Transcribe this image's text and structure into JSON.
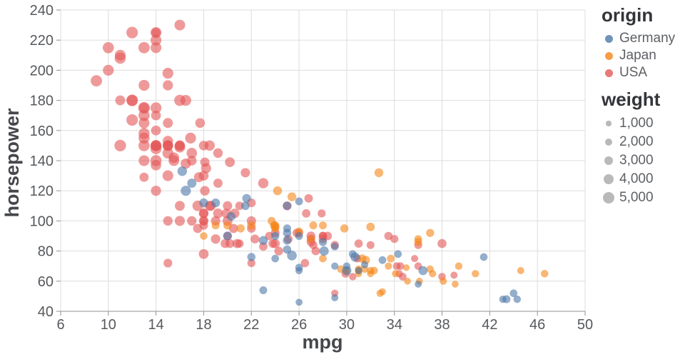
{
  "chart_data": {
    "type": "scatter",
    "title": "",
    "xlabel": "mpg",
    "ylabel": "horsepower",
    "xlim": [
      6,
      50
    ],
    "ylim": [
      40,
      240
    ],
    "xticks": [
      6,
      10,
      14,
      18,
      22,
      26,
      30,
      34,
      38,
      42,
      46,
      50
    ],
    "yticks": [
      40,
      60,
      80,
      100,
      120,
      140,
      160,
      180,
      200,
      220,
      240
    ],
    "grid": true,
    "point_opacity": 0.6,
    "colors": {
      "Germany": "#4c78a8",
      "Japan": "#f58518",
      "USA": "#e45756"
    },
    "legend": {
      "origin": {
        "title": "origin",
        "entries": [
          {
            "label": "Germany",
            "color": "#4c78a8"
          },
          {
            "label": "Japan",
            "color": "#f58518"
          },
          {
            "label": "USA",
            "color": "#e45756"
          }
        ]
      },
      "weight": {
        "title": "weight",
        "swatch_color": "#9b9b9b",
        "entries": [
          {
            "label": "1,000",
            "value": 1000
          },
          {
            "label": "2,000",
            "value": 2000
          },
          {
            "label": "3,000",
            "value": 3000
          },
          {
            "label": "4,000",
            "value": 4000
          },
          {
            "label": "5,000",
            "value": 5000
          }
        ]
      }
    },
    "point_format": [
      "mpg",
      "horsepower",
      "weight",
      "origin"
    ],
    "points": [
      [
        18,
        130,
        3504,
        "USA"
      ],
      [
        15,
        165,
        3693,
        "USA"
      ],
      [
        18,
        150,
        3436,
        "USA"
      ],
      [
        16,
        150,
        3433,
        "USA"
      ],
      [
        17,
        140,
        3449,
        "USA"
      ],
      [
        15,
        198,
        4341,
        "USA"
      ],
      [
        14,
        220,
        4354,
        "USA"
      ],
      [
        14,
        215,
        4312,
        "USA"
      ],
      [
        14,
        225,
        4425,
        "USA"
      ],
      [
        15,
        190,
        3850,
        "USA"
      ],
      [
        14,
        170,
        3563,
        "USA"
      ],
      [
        14,
        160,
        3609,
        "USA"
      ],
      [
        15,
        150,
        3761,
        "USA"
      ],
      [
        14,
        225,
        3086,
        "USA"
      ],
      [
        10,
        215,
        4615,
        "USA"
      ],
      [
        10,
        200,
        4376,
        "USA"
      ],
      [
        11,
        210,
        4382,
        "USA"
      ],
      [
        9,
        193,
        4732,
        "USA"
      ],
      [
        11,
        180,
        3664,
        "USA"
      ],
      [
        12,
        167,
        4906,
        "USA"
      ],
      [
        12,
        180,
        4499,
        "USA"
      ],
      [
        13,
        170,
        4654,
        "USA"
      ],
      [
        13,
        150,
        4699,
        "USA"
      ],
      [
        13,
        158,
        4504,
        "USA"
      ],
      [
        14,
        150,
        4464,
        "USA"
      ],
      [
        14,
        148,
        4657,
        "USA"
      ],
      [
        15,
        145,
        4440,
        "USA"
      ],
      [
        14,
        137,
        4042,
        "USA"
      ],
      [
        16,
        150,
        4077,
        "USA"
      ],
      [
        16,
        180,
        4668,
        "USA"
      ],
      [
        14,
        150,
        4257,
        "USA"
      ],
      [
        17,
        145,
        4082,
        "USA"
      ],
      [
        16,
        230,
        4278,
        "USA"
      ],
      [
        12,
        225,
        4951,
        "USA"
      ],
      [
        13,
        175,
        5140,
        "USA"
      ],
      [
        13,
        175,
        3821,
        "USA"
      ],
      [
        11,
        208,
        4633,
        "USA"
      ],
      [
        13,
        215,
        4735,
        "USA"
      ],
      [
        13,
        155,
        4502,
        "USA"
      ],
      [
        13,
        190,
        4422,
        "USA"
      ],
      [
        11,
        150,
        4997,
        "USA"
      ],
      [
        13,
        165,
        4274,
        "USA"
      ],
      [
        14,
        175,
        4464,
        "USA"
      ],
      [
        12,
        180,
        4955,
        "USA"
      ],
      [
        13,
        140,
        4294,
        "USA"
      ],
      [
        14,
        140,
        4638,
        "USA"
      ],
      [
        13,
        129,
        3169,
        "USA"
      ],
      [
        15,
        153,
        4034,
        "USA"
      ],
      [
        15,
        150,
        4135,
        "USA"
      ],
      [
        15,
        130,
        4295,
        "USA"
      ],
      [
        16,
        149,
        4335,
        "USA"
      ],
      [
        16.5,
        180,
        4380,
        "USA"
      ],
      [
        15.5,
        142,
        4054,
        "USA"
      ],
      [
        16.9,
        155,
        4360,
        "USA"
      ],
      [
        15.5,
        140,
        4215,
        "USA"
      ],
      [
        17.7,
        165,
        3445,
        "USA"
      ],
      [
        16.5,
        138,
        3955,
        "USA"
      ],
      [
        17.6,
        129,
        3725,
        "USA"
      ],
      [
        18.2,
        135,
        3830,
        "USA"
      ],
      [
        18.5,
        150,
        3940,
        "USA"
      ],
      [
        19.2,
        145,
        3425,
        "USA"
      ],
      [
        18.1,
        139,
        3205,
        "USA"
      ],
      [
        17.5,
        110,
        4165,
        "USA"
      ],
      [
        16,
        110,
        3632,
        "USA"
      ],
      [
        16,
        100,
        3781,
        "USA"
      ],
      [
        15,
        150,
        3892,
        "USA"
      ],
      [
        15,
        100,
        3336,
        "USA"
      ],
      [
        14,
        150,
        4036,
        "USA"
      ],
      [
        14,
        120,
        3820,
        "USA"
      ],
      [
        15,
        72,
        2835,
        "USA"
      ],
      [
        18,
        100,
        3288,
        "USA"
      ],
      [
        19,
        88,
        3302,
        "USA"
      ],
      [
        19.9,
        105,
        3365,
        "USA"
      ],
      [
        20.2,
        139,
        3570,
        "USA"
      ],
      [
        18.6,
        110,
        3620,
        "USA"
      ],
      [
        18.1,
        120,
        3410,
        "USA"
      ],
      [
        18.5,
        110,
        3645,
        "USA"
      ],
      [
        17.5,
        95,
        3193,
        "USA"
      ],
      [
        20,
        100,
        3651,
        "USA"
      ],
      [
        21,
        85,
        2587,
        "USA"
      ],
      [
        22,
        95,
        2833,
        "USA"
      ],
      [
        18,
        97,
        2774,
        "USA"
      ],
      [
        18,
        105,
        3121,
        "USA"
      ],
      [
        18,
        105,
        3459,
        "USA"
      ],
      [
        18,
        78,
        3574,
        "USA"
      ],
      [
        20,
        90,
        2648,
        "USA"
      ],
      [
        18,
        100,
        2789,
        "USA"
      ],
      [
        20.5,
        95,
        3155,
        "USA"
      ],
      [
        20.2,
        85,
        2965,
        "USA"
      ],
      [
        19.8,
        85,
        2990,
        "USA"
      ],
      [
        20.8,
        85,
        3070,
        "USA"
      ],
      [
        21,
        110,
        2660,
        "USA"
      ],
      [
        20,
        110,
        3221,
        "USA"
      ],
      [
        19.2,
        105,
        3535,
        "USA"
      ],
      [
        19.2,
        125,
        3140,
        "USA"
      ],
      [
        23,
        125,
        3900,
        "USA"
      ],
      [
        20.6,
        105,
        3380,
        "USA"
      ],
      [
        22,
        112,
        2835,
        "USA"
      ],
      [
        17,
        100,
        3329,
        "USA"
      ],
      [
        19,
        100,
        3282,
        "USA"
      ],
      [
        21.5,
        132,
        3245,
        "USA"
      ],
      [
        22,
        100,
        3233,
        "USA"
      ],
      [
        23,
        83,
        2639,
        "USA"
      ],
      [
        26.5,
        72,
        2565,
        "USA"
      ],
      [
        29,
        52,
        1958,
        "USA"
      ],
      [
        30.5,
        63,
        2051,
        "USA"
      ],
      [
        24,
        85,
        3158,
        "USA"
      ],
      [
        25.1,
        88,
        2720,
        "USA"
      ],
      [
        23.8,
        85,
        2855,
        "USA"
      ],
      [
        22.3,
        88,
        2890,
        "USA"
      ],
      [
        27.4,
        80,
        2670,
        "USA"
      ],
      [
        24.3,
        80,
        2870,
        "USA"
      ],
      [
        28,
        90,
        2264,
        "USA"
      ],
      [
        22,
        72,
        2408,
        "USA"
      ],
      [
        26,
        92,
        2585,
        "USA"
      ],
      [
        27,
        90,
        2950,
        "USA"
      ],
      [
        27,
        86,
        2790,
        "USA"
      ],
      [
        28,
        88,
        2605,
        "USA"
      ],
      [
        27,
        88,
        2640,
        "USA"
      ],
      [
        34,
        88,
        2395,
        "USA"
      ],
      [
        31,
        85,
        2575,
        "USA"
      ],
      [
        29,
        84,
        2525,
        "USA"
      ],
      [
        25.8,
        92,
        2620,
        "USA"
      ],
      [
        25,
        110,
        2880,
        "USA"
      ],
      [
        26.6,
        105,
        2635,
        "USA"
      ],
      [
        26.8,
        115,
        2700,
        "USA"
      ],
      [
        27.9,
        105,
        2380,
        "USA"
      ],
      [
        28,
        90,
        2678,
        "USA"
      ],
      [
        28.4,
        90,
        2670,
        "USA"
      ],
      [
        23.5,
        90,
        2556,
        "USA"
      ],
      [
        33.5,
        90,
        2556,
        "USA"
      ],
      [
        27.2,
        84,
        2490,
        "USA"
      ],
      [
        30.9,
        75,
        2230,
        "USA"
      ],
      [
        34.2,
        70,
        2200,
        "USA"
      ],
      [
        34.5,
        70,
        2150,
        "USA"
      ],
      [
        34.7,
        63,
        2215,
        "USA"
      ],
      [
        38,
        63,
        2125,
        "USA"
      ],
      [
        36,
        84,
        2370,
        "USA"
      ],
      [
        32,
        84,
        2295,
        "USA"
      ],
      [
        36,
        70,
        2125,
        "USA"
      ],
      [
        34.4,
        65,
        2045,
        "USA"
      ],
      [
        29.9,
        65,
        2380,
        "USA"
      ],
      [
        38,
        85,
        3015,
        "USA"
      ],
      [
        35.7,
        75,
        1915,
        "USA"
      ],
      [
        39,
        64,
        1875,
        "USA"
      ],
      [
        24,
        92,
        2865,
        "USA"
      ],
      [
        24,
        95,
        2372,
        "Japan"
      ],
      [
        27,
        88,
        2130,
        "Japan"
      ],
      [
        31,
        65,
        1773,
        "Japan"
      ],
      [
        35,
        69,
        1613,
        "Japan"
      ],
      [
        32,
        65,
        1836,
        "Japan"
      ],
      [
        31,
        67,
        1950,
        "Japan"
      ],
      [
        28,
        97,
        2288,
        "Japan"
      ],
      [
        24,
        97,
        2489,
        "Japan"
      ],
      [
        33,
        53,
        1795,
        "Japan"
      ],
      [
        26,
        93,
        2391,
        "Japan"
      ],
      [
        32.3,
        67,
        2145,
        "Japan"
      ],
      [
        20,
        97,
        2506,
        "Japan"
      ],
      [
        19,
        97,
        2330,
        "Japan"
      ],
      [
        18,
        90,
        2124,
        "Japan"
      ],
      [
        23.7,
        100,
        2420,
        "Japan"
      ],
      [
        21.1,
        95,
        2560,
        "Japan"
      ],
      [
        22,
        97,
        2745,
        "Japan"
      ],
      [
        25.4,
        116,
        2900,
        "Japan"
      ],
      [
        24.2,
        120,
        2930,
        "Japan"
      ],
      [
        32.7,
        132,
        2910,
        "Japan"
      ],
      [
        31.5,
        68,
        2045,
        "Japan"
      ],
      [
        29.5,
        68,
        2135,
        "Japan"
      ],
      [
        28,
        75,
        2155,
        "Japan"
      ],
      [
        39.4,
        70,
        2070,
        "Japan"
      ],
      [
        36.1,
        60,
        1800,
        "Japan"
      ],
      [
        38.1,
        60,
        1968,
        "Japan"
      ],
      [
        40.8,
        65,
        2020,
        "Japan"
      ],
      [
        46.6,
        65,
        2110,
        "Japan"
      ],
      [
        35.1,
        60,
        1760,
        "Japan"
      ],
      [
        30,
        67,
        1985,
        "Japan"
      ],
      [
        37.2,
        65,
        1975,
        "Japan"
      ],
      [
        39.1,
        58,
        1755,
        "Japan"
      ],
      [
        33.7,
        75,
        2210,
        "Japan"
      ],
      [
        31.3,
        75,
        2542,
        "Japan"
      ],
      [
        31.6,
        74,
        2635,
        "Japan"
      ],
      [
        37,
        92,
        2434,
        "Japan"
      ],
      [
        32,
        96,
        2665,
        "Japan"
      ],
      [
        36,
        88,
        2160,
        "Japan"
      ],
      [
        36,
        86,
        2355,
        "Japan"
      ],
      [
        37,
        68,
        2025,
        "Japan"
      ],
      [
        31,
        68,
        1970,
        "Japan"
      ],
      [
        32,
        67,
        1965,
        "Japan"
      ],
      [
        23.9,
        97,
        2405,
        "Japan"
      ],
      [
        29.8,
        95,
        2515,
        "Japan"
      ],
      [
        32.8,
        52,
        1985,
        "Japan"
      ],
      [
        34.1,
        65,
        1975,
        "Japan"
      ],
      [
        33.5,
        70,
        1945,
        "Japan"
      ],
      [
        24,
        96,
        2665,
        "Japan"
      ],
      [
        44.6,
        67,
        1850,
        "Japan"
      ],
      [
        27.2,
        97,
        2300,
        "Japan"
      ],
      [
        26,
        46,
        1835,
        "Germany"
      ],
      [
        25,
        87,
        2672,
        "Germany"
      ],
      [
        24,
        90,
        2430,
        "Germany"
      ],
      [
        25,
        95,
        2375,
        "Germany"
      ],
      [
        26,
        113,
        2234,
        "Germany"
      ],
      [
        20,
        90,
        2914,
        "Germany"
      ],
      [
        25,
        110,
        2694,
        "Germany"
      ],
      [
        19,
        112,
        2868,
        "Germany"
      ],
      [
        24,
        75,
        2158,
        "Germany"
      ],
      [
        29,
        49,
        1867,
        "Germany"
      ],
      [
        26,
        69,
        2189,
        "Germany"
      ],
      [
        23,
        87,
        2979,
        "Germany"
      ],
      [
        22,
        76,
        2511,
        "Germany"
      ],
      [
        30,
        70,
        2074,
        "Germany"
      ],
      [
        26,
        90,
        2265,
        "Germany"
      ],
      [
        30.5,
        78,
        2190,
        "Germany"
      ],
      [
        29,
        83,
        2219,
        "Germany"
      ],
      [
        28,
        86,
        2464,
        "Germany"
      ],
      [
        25,
        81,
        2542,
        "Germany"
      ],
      [
        25,
        92,
        2572,
        "Germany"
      ],
      [
        36,
        58,
        1825,
        "Germany"
      ],
      [
        29,
        70,
        1937,
        "Germany"
      ],
      [
        41.5,
        76,
        2144,
        "Germany"
      ],
      [
        20.3,
        103,
        2830,
        "Germany"
      ],
      [
        17,
        125,
        3140,
        "Germany"
      ],
      [
        21.6,
        115,
        2795,
        "Germany"
      ],
      [
        21.5,
        110,
        2600,
        "Germany"
      ],
      [
        30,
        67,
        3250,
        "Germany"
      ],
      [
        25.4,
        77,
        3530,
        "Germany"
      ],
      [
        34.3,
        78,
        2188,
        "Germany"
      ],
      [
        43.1,
        48,
        1985,
        "Germany"
      ],
      [
        43.4,
        48,
        2335,
        "Germany"
      ],
      [
        44.3,
        48,
        2085,
        "Germany"
      ],
      [
        44,
        52,
        2130,
        "Germany"
      ],
      [
        36.4,
        67,
        3030,
        "Germany"
      ],
      [
        16.5,
        120,
        3820,
        "Germany"
      ],
      [
        16.2,
        133,
        3410,
        "Germany"
      ],
      [
        28.1,
        80,
        3230,
        "Germany"
      ],
      [
        30.7,
        76,
        3160,
        "Germany"
      ],
      [
        33,
        74,
        2190,
        "Germany"
      ],
      [
        31.5,
        71,
        1990,
        "Germany"
      ],
      [
        18,
        112,
        2933,
        "Germany"
      ],
      [
        31,
        67,
        2000,
        "Germany"
      ],
      [
        26,
        67,
        1963,
        "Germany"
      ],
      [
        23,
        54,
        2254,
        "Germany"
      ]
    ]
  }
}
